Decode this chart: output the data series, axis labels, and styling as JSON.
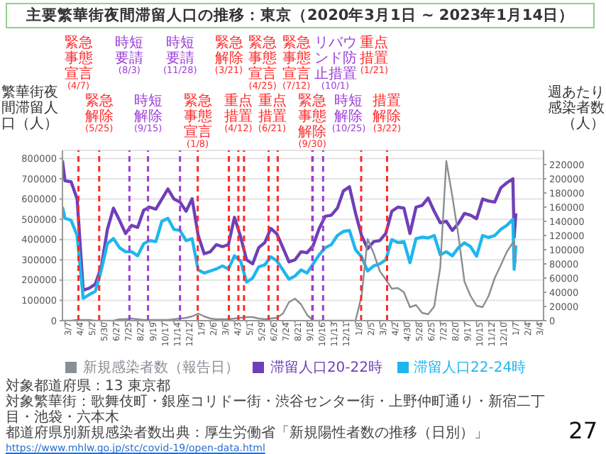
{
  "chart_data": {
    "type": "line",
    "title": "主要繁華街夜間滞留人口の推移：東京（2020年3月1日 ~ 2023年1月14日）",
    "ylabel": "繁華街夜間滞留人口（人）",
    "y2label": "週あたり感染者数（人）",
    "x": [
      "2020-03-01",
      "2020-03-07",
      "2020-03-21",
      "2020-04-04",
      "2020-04-18",
      "2020-05-02",
      "2020-05-16",
      "2020-05-30",
      "2020-06-13",
      "2020-06-27",
      "2020-07-11",
      "2020-07-25",
      "2020-08-08",
      "2020-08-22",
      "2020-09-05",
      "2020-09-19",
      "2020-10-03",
      "2020-10-17",
      "2020-10-31",
      "2020-11-14",
      "2020-11-28",
      "2020-12-12",
      "2020-12-26",
      "2021-01-09",
      "2021-01-23",
      "2021-02-06",
      "2021-02-20",
      "2021-03-06",
      "2021-03-20",
      "2021-04-03",
      "2021-04-17",
      "2021-05-01",
      "2021-05-15",
      "2021-05-29",
      "2021-06-12",
      "2021-06-26",
      "2021-07-10",
      "2021-07-24",
      "2021-08-07",
      "2021-08-21",
      "2021-09-04",
      "2021-09-18",
      "2021-10-02",
      "2021-10-16",
      "2021-10-30",
      "2021-11-13",
      "2021-11-27",
      "2021-12-11",
      "2021-12-25",
      "2022-01-08",
      "2022-01-22",
      "2022-02-05",
      "2022-02-19",
      "2022-03-05",
      "2022-03-19",
      "2022-04-02",
      "2022-04-16",
      "2022-04-30",
      "2022-05-14",
      "2022-05-28",
      "2022-06-11",
      "2022-06-25",
      "2022-07-09",
      "2022-07-23",
      "2022-08-06",
      "2022-08-20",
      "2022-09-03",
      "2022-09-17",
      "2022-10-01",
      "2022-10-15",
      "2022-10-29",
      "2022-11-12",
      "2022-11-26",
      "2022-12-10",
      "2022-12-24",
      "2023-01-07",
      "2023-01-10",
      "2023-01-14"
    ],
    "series": [
      {
        "name": "滞留人口20-22時",
        "color": "#6f3fb8",
        "values": [
          790000,
          690000,
          685000,
          600000,
          150000,
          160000,
          180000,
          266000,
          450000,
          555000,
          495000,
          430000,
          470000,
          460000,
          545000,
          560000,
          550000,
          600000,
          650000,
          600000,
          585000,
          540000,
          601000,
          420000,
          330000,
          340000,
          375000,
          365000,
          375000,
          510000,
          415000,
          300000,
          280000,
          360000,
          385000,
          455000,
          428000,
          360000,
          290000,
          300000,
          340000,
          335000,
          370000,
          455000,
          515000,
          520000,
          555000,
          640000,
          660000,
          530000,
          420000,
          355000,
          390000,
          395000,
          430000,
          540000,
          560000,
          555000,
          430000,
          560000,
          568000,
          605000,
          540000,
          483000,
          490000,
          445000,
          480000,
          529000,
          520000,
          503000,
          600000,
          590000,
          585000,
          655000,
          680000,
          700000,
          411000,
          530000
        ]
      },
      {
        "name": "滞留人口22-24時",
        "color": "#1fb6ee",
        "values": [
          560000,
          505000,
          495000,
          420000,
          110000,
          128000,
          145000,
          250000,
          380000,
          405000,
          360000,
          340000,
          340000,
          320000,
          380000,
          395000,
          390000,
          490000,
          505000,
          450000,
          445000,
          395000,
          404000,
          250000,
          235000,
          245000,
          255000,
          270000,
          255000,
          320000,
          295000,
          190000,
          210000,
          265000,
          275000,
          315000,
          295000,
          250000,
          205000,
          220000,
          250000,
          235000,
          280000,
          325000,
          360000,
          375000,
          420000,
          440000,
          445000,
          350000,
          315000,
          245000,
          270000,
          280000,
          300000,
          400000,
          385000,
          390000,
          286000,
          405000,
          412000,
          408000,
          420000,
          325000,
          340000,
          320000,
          360000,
          384000,
          365000,
          318000,
          420000,
          410000,
          420000,
          450000,
          470000,
          500000,
          253000,
          371000
        ]
      },
      {
        "name": "新規感染者数（報告日）",
        "color": "#8a8e96",
        "axis": "y2",
        "values": [
          0,
          0,
          0,
          1000,
          1000,
          1000,
          0,
          0,
          0,
          0,
          2000,
          2000,
          3000,
          2000,
          1000,
          1000,
          1000,
          1000,
          1000,
          2000,
          3000,
          4000,
          6000,
          10000,
          6000,
          3000,
          2000,
          2000,
          2000,
          3000,
          4000,
          5000,
          5000,
          3000,
          2000,
          3000,
          4000,
          10000,
          26000,
          31000,
          23000,
          8000,
          0,
          0,
          0,
          0,
          0,
          0,
          0,
          0,
          35000,
          115000,
          95000,
          70000,
          58000,
          45000,
          46000,
          40000,
          19000,
          22000,
          11000,
          9000,
          20000,
          75000,
          225000,
          175000,
          120000,
          55000,
          35000,
          21000,
          19000,
          35000,
          60000,
          78000,
          97000,
          110000,
          112000,
          82000
        ]
      }
    ],
    "xlim": [
      "2020-03-01",
      "2023-03-19"
    ],
    "xticks": [
      {
        "value": "2020-03-07",
        "label": "3/7"
      },
      {
        "value": "2020-04-04",
        "label": "4/4"
      },
      {
        "value": "2020-05-02",
        "label": "5/2"
      },
      {
        "value": "2020-05-30",
        "label": "5/30"
      },
      {
        "value": "2020-06-27",
        "label": "6/27"
      },
      {
        "value": "2020-07-25",
        "label": "7/25"
      },
      {
        "value": "2020-08-22",
        "label": "8/22"
      },
      {
        "value": "2020-09-19",
        "label": "9/19"
      },
      {
        "value": "2020-10-17",
        "label": "10/17"
      },
      {
        "value": "2020-11-14",
        "label": "11/14"
      },
      {
        "value": "2020-12-12",
        "label": "12/12"
      },
      {
        "value": "2021-01-09",
        "label": "1/9"
      },
      {
        "value": "2021-02-06",
        "label": "2/6"
      },
      {
        "value": "2021-03-06",
        "label": "3/6"
      },
      {
        "value": "2021-04-03",
        "label": "4/3"
      },
      {
        "value": "2021-05-01",
        "label": "5/1"
      },
      {
        "value": "2021-05-29",
        "label": "5/29"
      },
      {
        "value": "2021-06-26",
        "label": "6/26"
      },
      {
        "value": "2021-07-24",
        "label": "7/24"
      },
      {
        "value": "2021-08-21",
        "label": "8/21"
      },
      {
        "value": "2021-09-18",
        "label": "9/18"
      },
      {
        "value": "2021-10-16",
        "label": "10/16"
      },
      {
        "value": "2021-11-13",
        "label": "11/13"
      },
      {
        "value": "2021-12-11",
        "label": "12/11"
      },
      {
        "value": "2022-01-08",
        "label": "1/8"
      },
      {
        "value": "2022-02-05",
        "label": "2/5"
      },
      {
        "value": "2022-03-05",
        "label": "3/5"
      },
      {
        "value": "2022-04-02",
        "label": "4/2"
      },
      {
        "value": "2022-04-30",
        "label": "4/30"
      },
      {
        "value": "2022-05-28",
        "label": "5/28"
      },
      {
        "value": "2022-06-25",
        "label": "6/25"
      },
      {
        "value": "2022-07-23",
        "label": "7/23"
      },
      {
        "value": "2022-08-20",
        "label": "8/20"
      },
      {
        "value": "2022-09-17",
        "label": "9/17"
      },
      {
        "value": "2022-10-15",
        "label": "10/15"
      },
      {
        "value": "2022-11-12",
        "label": "11/12"
      },
      {
        "value": "2022-12-10",
        "label": "12/10"
      },
      {
        "value": "2023-01-07",
        "label": "1/7"
      },
      {
        "value": "2023-02-04",
        "label": "2/4"
      },
      {
        "value": "2023-03-04",
        "label": "3/4"
      }
    ],
    "ylim": [
      0,
      840000
    ],
    "yticks": [
      0,
      100000,
      200000,
      300000,
      400000,
      500000,
      600000,
      700000,
      800000
    ],
    "y2lim": [
      0,
      240000
    ],
    "y2ticks": [
      0,
      20000,
      40000,
      60000,
      80000,
      100000,
      120000,
      140000,
      160000,
      180000,
      200000,
      220000
    ],
    "grid": "y",
    "legend": "bottom",
    "marker": "none",
    "line_style": "solid",
    "ref_lines": [
      {
        "axis": "x",
        "value": "2020-04-07",
        "label": "緊急事態宣言(4/7)",
        "color": "#ff2a2a",
        "line_style": "dashed"
      },
      {
        "axis": "x",
        "value": "2020-05-25",
        "label": "緊急解除(5/25)",
        "color": "#ff2a2a",
        "line_style": "dashed"
      },
      {
        "axis": "x",
        "value": "2020-08-03",
        "label": "時短要請(8/3)",
        "color": "#9b3fd6",
        "line_style": "dashed"
      },
      {
        "axis": "x",
        "value": "2020-09-15",
        "label": "時短解除(9/15)",
        "color": "#9b3fd6",
        "line_style": "dashed"
      },
      {
        "axis": "x",
        "value": "2020-11-28",
        "label": "時短要請(11/28)",
        "color": "#9b3fd6",
        "line_style": "dashed"
      },
      {
        "axis": "x",
        "value": "2021-01-08",
        "label": "緊急事態宣言(1/8)",
        "color": "#ff2a2a",
        "line_style": "dashed"
      },
      {
        "axis": "x",
        "value": "2021-03-21",
        "label": "緊急解除(3/21)",
        "color": "#ff2a2a",
        "line_style": "dashed"
      },
      {
        "axis": "x",
        "value": "2021-04-12",
        "label": "重点措置(4/12)",
        "color": "#ff2a2a",
        "line_style": "dashed"
      },
      {
        "axis": "x",
        "value": "2021-04-25",
        "label": "緊急事態宣言(4/25)",
        "color": "#ff2a2a",
        "line_style": "dashed"
      },
      {
        "axis": "x",
        "value": "2021-06-21",
        "label": "重点措置(6/21)",
        "color": "#ff2a2a",
        "line_style": "dashed"
      },
      {
        "axis": "x",
        "value": "2021-07-12",
        "label": "緊急事態宣言(7/12)",
        "color": "#ff2a2a",
        "line_style": "dashed"
      },
      {
        "axis": "x",
        "value": "2021-09-30",
        "label": "緊急事態解除(9/30)",
        "color": "#ff2a2a",
        "line_style": "dashed"
      },
      {
        "axis": "x",
        "value": "2021-10-01",
        "label": "リバウンド防止措置(10/1)",
        "color": "#9b3fd6",
        "line_style": "dashed"
      },
      {
        "axis": "x",
        "value": "2021-10-25",
        "label": "時短解除(10/25)",
        "color": "#9b3fd6",
        "line_style": "dashed"
      },
      {
        "axis": "x",
        "value": "2022-01-21",
        "label": "重点措置(1/21)",
        "color": "#ff2a2a",
        "line_style": "dashed"
      },
      {
        "axis": "x",
        "value": "2022-03-22",
        "label": "措置解除(3/22)",
        "color": "#ff2a2a",
        "line_style": "dashed"
      }
    ],
    "annotations": [
      "対象都道府県：13 東京都",
      "対象繁華街：歌舞伎町・銀座コリドー街・渋谷センター街・上野仲町通り・新宿二丁目・池袋・六本木",
      "都道府県別新規感染者数出典：厚生労働省「新規陽性者数の推移（日別）」",
      "https://www.mhlw.go.jp/stc/covid-19/open-data.html",
      "27"
    ]
  }
}
